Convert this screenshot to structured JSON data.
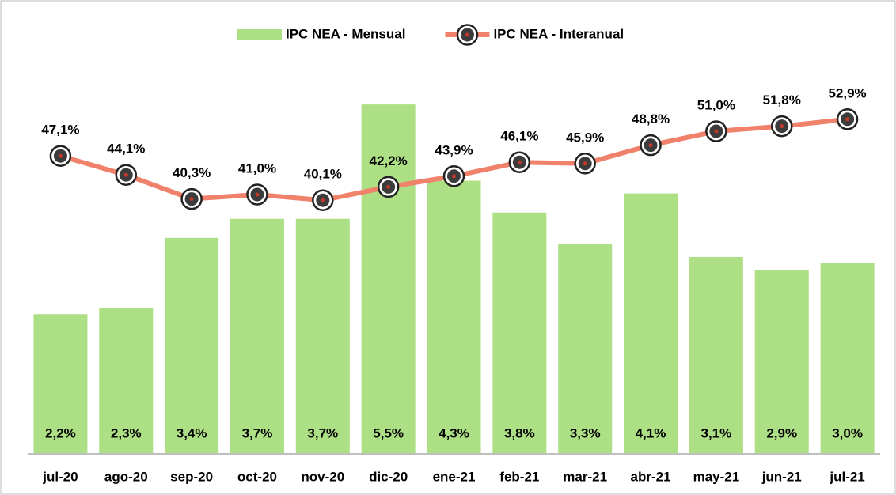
{
  "chart_data": {
    "type": "bar",
    "categories": [
      "jul-20",
      "ago-20",
      "sep-20",
      "oct-20",
      "nov-20",
      "dic-20",
      "ene-21",
      "feb-21",
      "mar-21",
      "abr-21",
      "may-21",
      "jun-21",
      "jul-21"
    ],
    "series": [
      {
        "name": "IPC NEA - Mensual",
        "type": "bar",
        "color": "#addf85",
        "values": [
          2.2,
          2.3,
          3.4,
          3.7,
          3.7,
          5.5,
          4.3,
          3.8,
          3.3,
          4.1,
          3.1,
          2.9,
          3.0
        ],
        "value_labels": [
          "2,2%",
          "2,3%",
          "3,4%",
          "3,7%",
          "3,7%",
          "5,5%",
          "4,3%",
          "3,8%",
          "3,3%",
          "4,1%",
          "3,1%",
          "2,9%",
          "3,0%"
        ]
      },
      {
        "name": "IPC NEA - Interanual",
        "type": "line",
        "axis": "y2",
        "color": "#f0826c",
        "values": [
          47.1,
          44.1,
          40.3,
          41.0,
          40.1,
          42.2,
          43.9,
          46.1,
          45.9,
          48.8,
          51.0,
          51.8,
          52.9
        ],
        "value_labels": [
          "47,1%",
          "44,1%",
          "40,3%",
          "41,0%",
          "40,1%",
          "42,2%",
          "43,9%",
          "46,1%",
          "45,9%",
          "48,8%",
          "51,0%",
          "51,8%",
          "52,9%"
        ]
      }
    ],
    "ylim": [
      0,
      5.9
    ],
    "y2lim": [
      0,
      59.25
    ],
    "legend": "top"
  }
}
